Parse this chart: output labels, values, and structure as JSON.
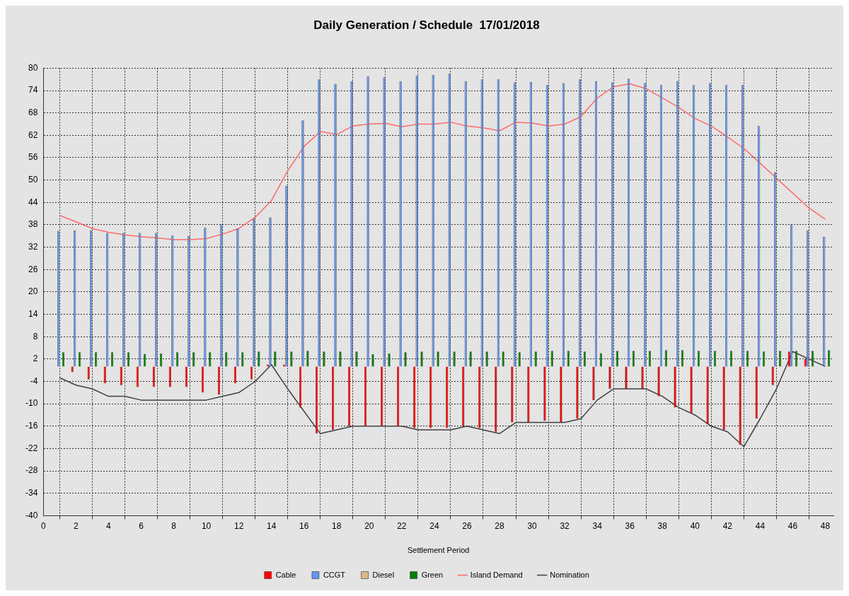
{
  "chart_data": {
    "type": "bar",
    "title": "Daily Generation / Schedule  17/01/2018",
    "xlabel": "Settlement Period",
    "x": [
      1,
      2,
      3,
      4,
      5,
      6,
      7,
      8,
      9,
      10,
      11,
      12,
      13,
      14,
      15,
      16,
      17,
      18,
      19,
      20,
      21,
      22,
      23,
      24,
      25,
      26,
      27,
      28,
      29,
      30,
      31,
      32,
      33,
      34,
      35,
      36,
      37,
      38,
      39,
      40,
      41,
      42,
      43,
      44,
      45,
      46,
      47,
      48
    ],
    "xlim": [
      0,
      48.5
    ],
    "xticks": [
      0,
      2,
      4,
      6,
      8,
      10,
      12,
      14,
      16,
      18,
      20,
      22,
      24,
      26,
      28,
      30,
      32,
      34,
      36,
      38,
      40,
      42,
      44,
      46,
      48
    ],
    "ylim": [
      -40,
      80
    ],
    "yticks": [
      -40,
      -34,
      -28,
      -22,
      -16,
      -10,
      -4,
      2,
      8,
      14,
      20,
      26,
      32,
      38,
      44,
      50,
      56,
      62,
      68,
      74,
      80
    ],
    "grid": true,
    "legend": "bottom",
    "marker": "none",
    "line_style": "solid",
    "series": [
      {
        "name": "Cable",
        "color": "#ff0000",
        "values": [
          0,
          -1.5,
          -3.5,
          -4.5,
          -5,
          -5.5,
          -5.5,
          -5.5,
          -5.5,
          -7,
          -7.5,
          -4.5,
          -3.5,
          0.5,
          0.5,
          -11,
          -18,
          -17,
          -16,
          -16,
          -16,
          -16,
          -16.5,
          -16.5,
          -16.5,
          -16,
          -16.5,
          -17.5,
          -15,
          -15,
          -14.5,
          -15,
          -14,
          -9,
          -6,
          -6,
          -6,
          -8,
          -11,
          -12.5,
          -15.5,
          -17,
          -21,
          -14,
          -5,
          4,
          2,
          0
        ]
      },
      {
        "name": "CCGT",
        "color": "#6495ed",
        "values": [
          36.4,
          36.5,
          36.5,
          35.8,
          35.8,
          35.8,
          35.8,
          35.2,
          35,
          37.3,
          38.2,
          37,
          39.5,
          40,
          48.5,
          66,
          77,
          75.8,
          76.5,
          77.8,
          77.5,
          76.5,
          78,
          78.2,
          78.5,
          76.5,
          77,
          77,
          76.2,
          76.3,
          75.5,
          76,
          77,
          76.5,
          76.2,
          77.2,
          76,
          75.5,
          76.5,
          75.5,
          76,
          75.5,
          75.5,
          64.5,
          52,
          38,
          36.5,
          34.8
        ]
      },
      {
        "name": "Diesel",
        "color": "#deb887",
        "values": [
          0,
          0,
          0,
          0,
          0,
          0,
          0,
          0,
          0,
          0,
          0,
          0,
          0,
          0,
          0,
          0,
          0,
          0,
          0,
          0,
          0,
          0,
          0,
          0,
          0,
          0,
          0,
          0,
          0,
          0,
          0,
          0,
          0,
          0,
          0,
          0,
          0,
          0,
          0,
          0,
          0,
          0,
          0,
          0,
          0,
          0,
          0,
          0
        ]
      },
      {
        "name": "Green",
        "color": "#008000",
        "values": [
          3.8,
          3.8,
          3.8,
          3.8,
          3.8,
          3.4,
          3.5,
          3.8,
          3.8,
          3.8,
          3.8,
          3.8,
          4,
          4,
          4,
          4.2,
          4,
          4,
          4,
          3.3,
          3.5,
          3.8,
          4,
          4,
          4,
          4,
          4,
          4,
          3.8,
          4,
          4.2,
          4.2,
          4,
          3.6,
          4.2,
          4.2,
          4.2,
          4.4,
          4.4,
          4.2,
          4.2,
          4.2,
          4.2,
          4,
          4.2,
          4.2,
          4.2,
          4.4
        ]
      },
      {
        "name": "Island Demand",
        "type": "line",
        "color": "#ff6a6a",
        "values": [
          40.5,
          38.8,
          37,
          36,
          35.3,
          34.8,
          34.5,
          34,
          34,
          34.3,
          35.5,
          37,
          40,
          44.5,
          52.5,
          59,
          63,
          62.2,
          64.5,
          65,
          65.2,
          64.3,
          65,
          65,
          65.5,
          64.5,
          64,
          63.2,
          65.5,
          65.3,
          64.5,
          65,
          67,
          72,
          75,
          75.8,
          74.5,
          72,
          69.5,
          66.5,
          64.5,
          61.5,
          58.5,
          54.5,
          50.5,
          46.5,
          42.5,
          39.5
        ]
      },
      {
        "name": "Nomination",
        "type": "line",
        "color": "#404040",
        "values": [
          -3,
          -5,
          -6,
          -8,
          -8,
          -9,
          -9,
          -9,
          -9,
          -9,
          -8,
          -7,
          -4,
          0.5,
          -6,
          -12,
          -18,
          -17,
          -16,
          -16,
          -16,
          -16,
          -17,
          -17,
          -17,
          -16,
          -17,
          -18,
          -15,
          -15,
          -15,
          -15,
          -14,
          -9,
          -6,
          -6,
          -6,
          -8,
          -11,
          -13,
          -16,
          -17.5,
          -21.5,
          -14,
          -6,
          4,
          2,
          0
        ]
      }
    ]
  }
}
